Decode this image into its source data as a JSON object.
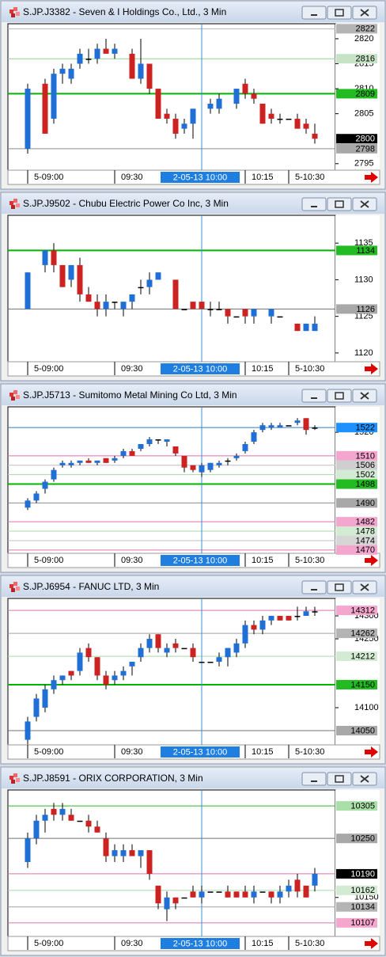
{
  "chart_data": [
    {
      "type": "candlestick",
      "title": "S.JP.J3382 - Seven & I Holdings Co., Ltd., 3 Min",
      "x": [
        "09:00",
        "09:06",
        "09:09",
        "09:12",
        "09:15",
        "09:18",
        "09:21",
        "09:24",
        "09:27",
        "09:30",
        "09:36",
        "09:39",
        "09:42",
        "09:45",
        "09:48",
        "09:51",
        "09:54",
        "09:57",
        "10:03",
        "10:06",
        "10:12",
        "10:15",
        "10:18",
        "10:21",
        "10:24",
        "10:27",
        "10:30",
        "10:33",
        "10:36",
        "10:39"
      ],
      "open": [
        2798,
        2811,
        2804,
        2813,
        2812,
        2815,
        2816,
        2816,
        2818,
        2817,
        2817,
        2812,
        2815,
        2810,
        2805,
        2804,
        2802,
        2803,
        2806,
        2806,
        2807,
        2811,
        2809,
        2807,
        2805,
        2804,
        2804,
        2804,
        2803,
        2801
      ],
      "high": [
        2811,
        2812,
        2814,
        2815,
        2815,
        2818,
        2818,
        2819,
        2820,
        2819,
        2818,
        2820,
        2815,
        2810,
        2806,
        2805,
        2804,
        2806,
        2808,
        2809,
        2810,
        2812,
        2810,
        2807,
        2806,
        2805,
        2804,
        2805,
        2804,
        2803
      ],
      "low": [
        2797,
        2801,
        2803,
        2811,
        2811,
        2814,
        2815,
        2815,
        2817,
        2816,
        2812,
        2811,
        2809,
        2804,
        2803,
        2800,
        2801,
        2800,
        2805,
        2805,
        2806,
        2808,
        2807,
        2803,
        2803,
        2803,
        2804,
        2802,
        2801,
        2799
      ],
      "close": [
        2810,
        2801,
        2813,
        2814,
        2814,
        2817,
        2816,
        2818,
        2817,
        2818,
        2812,
        2815,
        2810,
        2804,
        2804,
        2801,
        2803,
        2806,
        2807,
        2808,
        2810,
        2809,
        2808,
        2803,
        2804,
        2804,
        2804,
        2802,
        2802,
        2800
      ],
      "up_color": "#1f6fd6",
      "down_color": "#cc2222",
      "doji_color": "#000000",
      "ylim": [
        2793.7,
        2823
      ],
      "yticks": [
        2795,
        2805,
        2810,
        2815,
        2820
      ],
      "levels": [
        {
          "value": 2822,
          "box": "#b4b4b4",
          "line": "#b4b4b4"
        },
        {
          "value": 2816,
          "box": "#c6e3c6",
          "line": "#8fd48f"
        },
        {
          "value": 2809,
          "box": "#22bb22",
          "line": "#00b400"
        },
        {
          "value": 2800,
          "box": "#000000"
        },
        {
          "value": 2798,
          "box": "#a8a8a8",
          "line": "#8c8c8c"
        }
      ],
      "xticks": [
        {
          "value": "09:00",
          "label": "5-09:00"
        },
        "09:30",
        "10:15",
        {
          "value": "10:30",
          "label": "5-10:30"
        }
      ],
      "crosshair": {
        "value": "10:00",
        "label": "2-05-13 10:00"
      }
    },
    {
      "type": "candlestick",
      "title": "S.JP.J9502 - Chubu Electric Power Co Inc, 3 Min",
      "x": [
        "09:00",
        "09:06",
        "09:09",
        "09:12",
        "09:15",
        "09:18",
        "09:21",
        "09:24",
        "09:27",
        "09:30",
        "09:33",
        "09:36",
        "09:39",
        "09:42",
        "09:45",
        "09:51",
        "09:54",
        "09:57",
        "10:00",
        "10:03",
        "10:06",
        "10:09",
        "10:12",
        "10:15",
        "10:18",
        "10:24",
        "10:27",
        "10:33",
        "10:36",
        "10:39"
      ],
      "open": [
        1126,
        1132,
        1134,
        1132,
        1130,
        1132,
        1128,
        1127,
        1126,
        1127,
        1126,
        1127,
        1129,
        1129,
        1130,
        1130,
        1126,
        1127,
        1127,
        1126,
        1126,
        1126,
        1125,
        1126,
        1125,
        1125,
        1125,
        1124,
        1123,
        1123
      ],
      "high": [
        1131,
        1134,
        1135,
        1132,
        1132,
        1133,
        1129,
        1128,
        1128,
        1127,
        1127,
        1128,
        1130,
        1131,
        1131,
        1130,
        1126,
        1127,
        1127,
        1127,
        1127,
        1126,
        1125,
        1126,
        1126,
        1126,
        1125,
        1124,
        1124,
        1125
      ],
      "low": [
        1126,
        1131,
        1131,
        1129,
        1129,
        1127,
        1127,
        1125,
        1125,
        1126,
        1125,
        1126,
        1128,
        1128,
        1130,
        1126,
        1126,
        1126,
        1126,
        1125,
        1126,
        1124,
        1125,
        1124,
        1124,
        1124,
        1125,
        1123,
        1123,
        1123
      ],
      "close": [
        1131,
        1134,
        1132,
        1129,
        1132,
        1128,
        1127,
        1126,
        1127,
        1127,
        1127,
        1128,
        1129,
        1130,
        1131,
        1126,
        1126,
        1126,
        1126,
        1126,
        1126,
        1125,
        1125,
        1125,
        1126,
        1126,
        1125,
        1123,
        1124,
        1124
      ],
      "up_color": "#1f6fd6",
      "down_color": "#cc2222",
      "doji_color": "#000000",
      "ylim": [
        1118.8,
        1138.8
      ],
      "yticks": [
        1120,
        1125,
        1130,
        1135
      ],
      "levels": [
        {
          "value": 1134,
          "box": "#22bb22",
          "line": "#00b400"
        },
        {
          "value": 1126,
          "box": "#a8a8a8",
          "line": "#707070"
        }
      ],
      "xticks": [
        {
          "value": "09:00",
          "label": "5-09:00"
        },
        "09:30",
        "10:15",
        {
          "value": "10:30",
          "label": "5-10:30"
        }
      ],
      "crosshair": {
        "value": "10:00",
        "label": "2-05-13 10:00"
      }
    },
    {
      "type": "candlestick",
      "title": "S.JP.J5713 - Sumitomo Metal Mining Co Ltd, 3 Min",
      "x": [
        "09:00",
        "09:03",
        "09:06",
        "09:09",
        "09:12",
        "09:15",
        "09:18",
        "09:21",
        "09:24",
        "09:27",
        "09:30",
        "09:33",
        "09:36",
        "09:39",
        "09:42",
        "09:45",
        "09:48",
        "09:51",
        "09:54",
        "09:57",
        "10:00",
        "10:03",
        "10:06",
        "10:09",
        "10:12",
        "10:15",
        "10:18",
        "10:21",
        "10:24",
        "10:27",
        "10:30",
        "10:33",
        "10:36",
        "10:39"
      ],
      "open": [
        1488,
        1491,
        1496,
        1500,
        1506,
        1506,
        1507,
        1508,
        1507,
        1509,
        1508,
        1510,
        1512,
        1513,
        1515,
        1517,
        1516,
        1514,
        1510,
        1506,
        1503,
        1504,
        1506,
        1508,
        1509,
        1512,
        1516,
        1521,
        1522,
        1522,
        1523,
        1524,
        1526,
        1522
      ],
      "high": [
        1492,
        1495,
        1500,
        1505,
        1508,
        1508,
        1508,
        1509,
        1508,
        1509,
        1510,
        1513,
        1513,
        1515,
        1518,
        1517,
        1517,
        1514,
        1510,
        1506,
        1507,
        1507,
        1508,
        1509,
        1511,
        1516,
        1521,
        1524,
        1524,
        1524,
        1523,
        1526,
        1526,
        1523
      ],
      "low": [
        1487,
        1490,
        1494,
        1499,
        1505,
        1505,
        1506,
        1507,
        1506,
        1507,
        1507,
        1509,
        1510,
        1512,
        1514,
        1515,
        1514,
        1510,
        1503,
        1503,
        1501,
        1503,
        1505,
        1506,
        1508,
        1511,
        1515,
        1520,
        1521,
        1522,
        1523,
        1523,
        1519,
        1521
      ],
      "close": [
        1491,
        1494,
        1499,
        1504,
        1507,
        1507,
        1508,
        1507,
        1508,
        1507,
        1509,
        1512,
        1510,
        1515,
        1517,
        1517,
        1517,
        1511,
        1505,
        1504,
        1506,
        1507,
        1507,
        1508,
        1510,
        1515,
        1520,
        1523,
        1523,
        1523,
        1523,
        1525,
        1521,
        1522
      ],
      "up_color": "#1f6fd6",
      "down_color": "#cc2222",
      "doji_color": "#000000",
      "ylim": [
        1468.6,
        1530.8
      ],
      "yticks": [
        1520
      ],
      "levels": [
        {
          "value": 1522,
          "box": "#1e90ff",
          "line": "#2a7fc0"
        },
        {
          "value": 1510,
          "box": "#f4a6cf",
          "line": "#e070b0"
        },
        {
          "value": 1506,
          "box": "#cfcfcf",
          "line": "#bdbdbd"
        },
        {
          "value": 1502,
          "box": "#d3ead3",
          "line": "#a8d8a8"
        },
        {
          "value": 1498,
          "box": "#22bb22",
          "line": "#00b400"
        },
        {
          "value": 1490,
          "box": "#a8a8a8",
          "line": "#8c8c8c"
        },
        {
          "value": 1482,
          "box": "#f4a6cf",
          "line": "#e070b0"
        },
        {
          "value": 1478,
          "box": "#d3ead3",
          "line": "#a8d8a8"
        },
        {
          "value": 1474,
          "box": "#d6d6d6",
          "line": "#c0c0c0"
        },
        {
          "value": 1470,
          "box": "#f4a6cf",
          "line": "#e070b0"
        }
      ],
      "xticks": [
        {
          "value": "09:00",
          "label": "5-09:00"
        },
        "09:30",
        "10:15",
        {
          "value": "10:30",
          "label": "5-10:30"
        }
      ],
      "crosshair": {
        "value": "10:00",
        "label": "2-05-13 10:00"
      }
    },
    {
      "type": "candlestick",
      "title": "S.JP.J6954 - FANUC LTD, 3 Min",
      "x": [
        "09:00",
        "09:03",
        "09:06",
        "09:09",
        "09:12",
        "09:15",
        "09:18",
        "09:21",
        "09:24",
        "09:27",
        "09:30",
        "09:33",
        "09:36",
        "09:39",
        "09:42",
        "09:45",
        "09:48",
        "09:51",
        "09:54",
        "09:57",
        "10:00",
        "10:03",
        "10:06",
        "10:09",
        "10:12",
        "10:15",
        "10:18",
        "10:21",
        "10:24",
        "10:27",
        "10:30",
        "10:33",
        "10:36",
        "10:39"
      ],
      "open": [
        14030,
        14080,
        14100,
        14140,
        14160,
        14180,
        14180,
        14230,
        14210,
        14170,
        14160,
        14170,
        14190,
        14210,
        14230,
        14260,
        14220,
        14240,
        14230,
        14230,
        14200,
        14200,
        14200,
        14210,
        14220,
        14240,
        14280,
        14270,
        14290,
        14300,
        14300,
        14300,
        14300,
        14310
      ],
      "high": [
        14080,
        14130,
        14150,
        14170,
        14170,
        14180,
        14230,
        14240,
        14210,
        14180,
        14180,
        14190,
        14200,
        14240,
        14260,
        14260,
        14240,
        14250,
        14230,
        14240,
        14200,
        14200,
        14220,
        14230,
        14250,
        14290,
        14290,
        14300,
        14300,
        14300,
        14300,
        14320,
        14320,
        14320
      ],
      "low": [
        14020,
        14070,
        14090,
        14130,
        14150,
        14160,
        14170,
        14200,
        14160,
        14140,
        14150,
        14160,
        14170,
        14200,
        14220,
        14220,
        14210,
        14220,
        14230,
        14200,
        14200,
        14200,
        14190,
        14190,
        14210,
        14230,
        14260,
        14260,
        14280,
        14290,
        14290,
        14290,
        14300,
        14300
      ],
      "close": [
        14070,
        14120,
        14140,
        14160,
        14170,
        14170,
        14220,
        14210,
        14170,
        14150,
        14170,
        14180,
        14200,
        14230,
        14250,
        14230,
        14230,
        14230,
        14230,
        14210,
        14200,
        14200,
        14210,
        14230,
        14240,
        14280,
        14270,
        14290,
        14300,
        14290,
        14290,
        14300,
        14310,
        14310
      ],
      "up_color": "#1f6fd6",
      "down_color": "#cc2222",
      "doji_color": "#000000",
      "ylim": [
        14019,
        14338
      ],
      "yticks": [
        14100,
        14250,
        14300
      ],
      "levels": [
        {
          "value": 14312,
          "box": "#f4a6cf",
          "line": "#e070b0"
        },
        {
          "value": 14262,
          "box": "#b4b4b4",
          "line": "#a0a0a0"
        },
        {
          "value": 14212,
          "box": "#d3ead3",
          "line": "#a8d8a8"
        },
        {
          "value": 14150,
          "box": "#22bb22",
          "line": "#00b400"
        },
        {
          "value": 14050,
          "box": "#a8a8a8",
          "line": "#707070"
        }
      ],
      "xticks": [
        {
          "value": "09:00",
          "label": "5-09:00"
        },
        "09:30",
        "10:15",
        {
          "value": "10:30",
          "label": "5-10:30"
        }
      ],
      "crosshair": {
        "value": "10:00",
        "label": "2-05-13 10:00"
      }
    },
    {
      "type": "candlestick",
      "title": "S.JP.J8591 - ORIX CORPORATION, 3 Min",
      "x": [
        "09:00",
        "09:03",
        "09:06",
        "09:09",
        "09:12",
        "09:15",
        "09:18",
        "09:21",
        "09:24",
        "09:27",
        "09:30",
        "09:33",
        "09:36",
        "09:39",
        "09:42",
        "09:45",
        "09:48",
        "09:51",
        "09:54",
        "09:57",
        "10:00",
        "10:03",
        "10:06",
        "10:09",
        "10:12",
        "10:15",
        "10:18",
        "10:21",
        "10:24",
        "10:27",
        "10:30",
        "10:33",
        "10:36",
        "10:39"
      ],
      "open": [
        10210,
        10250,
        10280,
        10300,
        10290,
        10290,
        10280,
        10280,
        10270,
        10250,
        10220,
        10220,
        10230,
        10220,
        10230,
        10170,
        10130,
        10150,
        10150,
        10160,
        10150,
        10160,
        10160,
        10160,
        10160,
        10160,
        10150,
        10160,
        10160,
        10150,
        10160,
        10180,
        10170,
        10170
      ],
      "high": [
        10260,
        10290,
        10300,
        10310,
        10310,
        10300,
        10280,
        10290,
        10280,
        10260,
        10240,
        10240,
        10240,
        10230,
        10230,
        10170,
        10160,
        10150,
        10150,
        10170,
        10170,
        10160,
        10160,
        10170,
        10160,
        10170,
        10170,
        10160,
        10160,
        10170,
        10180,
        10190,
        10170,
        10200
      ],
      "low": [
        10200,
        10240,
        10260,
        10280,
        10280,
        10280,
        10280,
        10260,
        10260,
        10210,
        10210,
        10210,
        10220,
        10200,
        10180,
        10130,
        10110,
        10130,
        10150,
        10150,
        10140,
        10160,
        10160,
        10150,
        10150,
        10150,
        10140,
        10160,
        10140,
        10140,
        10150,
        10150,
        10150,
        10160
      ],
      "close": [
        10250,
        10280,
        10290,
        10290,
        10300,
        10280,
        10280,
        10270,
        10260,
        10220,
        10230,
        10230,
        10220,
        10230,
        10190,
        10140,
        10150,
        10140,
        10150,
        10150,
        10160,
        10160,
        10160,
        10150,
        10150,
        10150,
        10160,
        10160,
        10150,
        10160,
        10170,
        10160,
        10150,
        10190
      ],
      "up_color": "#1f6fd6",
      "down_color": "#cc2222",
      "doji_color": "#000000",
      "ylim": [
        10084,
        10332
      ],
      "yticks": [
        10150
      ],
      "levels": [
        {
          "value": 10305,
          "box": "#a8e0a8",
          "line": "#22bb22"
        },
        {
          "value": 10250,
          "box": "#a8a8a8",
          "line": "#707070"
        },
        {
          "value": 10190,
          "box": "#000000",
          "line": "#e070b0"
        },
        {
          "value": 10162,
          "box": "#d3ead3",
          "line": "#a8d8a8"
        },
        {
          "value": 10134,
          "box": "#b4b4b4",
          "line": "#a0a0a0"
        },
        {
          "value": 10107,
          "box": "#f4a6cf",
          "line": "#e070b0"
        }
      ],
      "xticks": [
        {
          "value": "09:00",
          "label": "5-09:00"
        },
        "09:30",
        "10:15",
        {
          "value": "10:30",
          "label": "5-10:30"
        }
      ],
      "crosshair": {
        "value": "10:00",
        "label": "2-05-13 10:00"
      }
    }
  ]
}
